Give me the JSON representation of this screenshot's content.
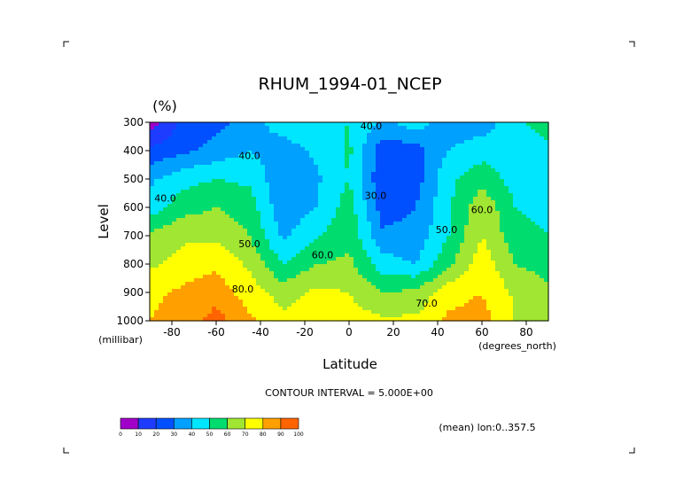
{
  "chart_data": {
    "type": "heatmap",
    "title": "RHUM_1994-01_NCEP",
    "unit": "(%)",
    "xlabel": "Latitude",
    "ylabel": "Level",
    "x_unit": "(degrees_north)",
    "y_unit": "(millibar)",
    "xlim": [
      -90,
      90
    ],
    "ylim": [
      1000,
      300
    ],
    "x_ticks": [
      -80,
      -60,
      -40,
      -20,
      0,
      20,
      40,
      60,
      80
    ],
    "x_tick_labels": [
      "-80",
      "-60",
      "-40",
      "-20",
      "0",
      "20",
      "40",
      "60",
      "80"
    ],
    "y_ticks": [
      300,
      400,
      500,
      600,
      700,
      800,
      900,
      1000
    ],
    "y_tick_labels": [
      "300",
      "400",
      "500",
      "600",
      "700",
      "800",
      "900",
      "1000"
    ],
    "contour_interval_text": "CONTOUR INTERVAL = 5.000E+00",
    "subtitle": "(mean) lon:0..357.5",
    "contour_labels": [
      {
        "text": "40.0",
        "x": 10,
        "y": 325
      },
      {
        "text": "40.0",
        "x": -45,
        "y": 430
      },
      {
        "text": "40.0",
        "x": -83,
        "y": 580
      },
      {
        "text": "30.0",
        "x": 12,
        "y": 570
      },
      {
        "text": "60.0",
        "x": 60,
        "y": 620
      },
      {
        "text": "50.0",
        "x": -45,
        "y": 740
      },
      {
        "text": "50.0",
        "x": 44,
        "y": 690
      },
      {
        "text": "60.0",
        "x": -12,
        "y": 780
      },
      {
        "text": "70.0",
        "x": 35,
        "y": 950
      },
      {
        "text": "80.0",
        "x": -48,
        "y": 900
      }
    ],
    "grid": false,
    "legend": {
      "position": "bottom-left",
      "levels": [
        0,
        10,
        20,
        30,
        40,
        50,
        60,
        70,
        80,
        90,
        100
      ],
      "level_labels": [
        "0",
        "10",
        "20",
        "30",
        "40",
        "50",
        "60",
        "70",
        "80",
        "90",
        "100"
      ],
      "colors": [
        "#a000c8",
        "#1e3cff",
        "#0050ff",
        "#00a0ff",
        "#00e6ff",
        "#00dc6e",
        "#a0e632",
        "#ffff00",
        "#ffa000",
        "#ff6400",
        "#ff0000"
      ]
    },
    "x": [
      -90,
      -75,
      -60,
      -45,
      -30,
      -15,
      0,
      15,
      30,
      45,
      60,
      75,
      90
    ],
    "y": [
      300,
      400,
      500,
      600,
      700,
      800,
      900,
      1000
    ],
    "z": [
      [
        5,
        22,
        26,
        35,
        45,
        48,
        50,
        38,
        45,
        35,
        34,
        48,
        55
      ],
      [
        22,
        28,
        34,
        40,
        35,
        42,
        52,
        24,
        25,
        40,
        46,
        45,
        47
      ],
      [
        38,
        46,
        50,
        48,
        32,
        38,
        50,
        22,
        25,
        48,
        56,
        46,
        44
      ],
      [
        44,
        56,
        60,
        55,
        33,
        40,
        55,
        25,
        30,
        48,
        68,
        50,
        47
      ],
      [
        62,
        68,
        68,
        60,
        38,
        48,
        58,
        32,
        33,
        50,
        70,
        54,
        50
      ],
      [
        68,
        74,
        78,
        68,
        50,
        60,
        62,
        45,
        40,
        58,
        76,
        60,
        56
      ],
      [
        78,
        82,
        86,
        75,
        66,
        72,
        70,
        60,
        62,
        76,
        80,
        68,
        62
      ],
      [
        80,
        84,
        94,
        82,
        72,
        78,
        74,
        72,
        72,
        82,
        84,
        70,
        65
      ]
    ]
  }
}
